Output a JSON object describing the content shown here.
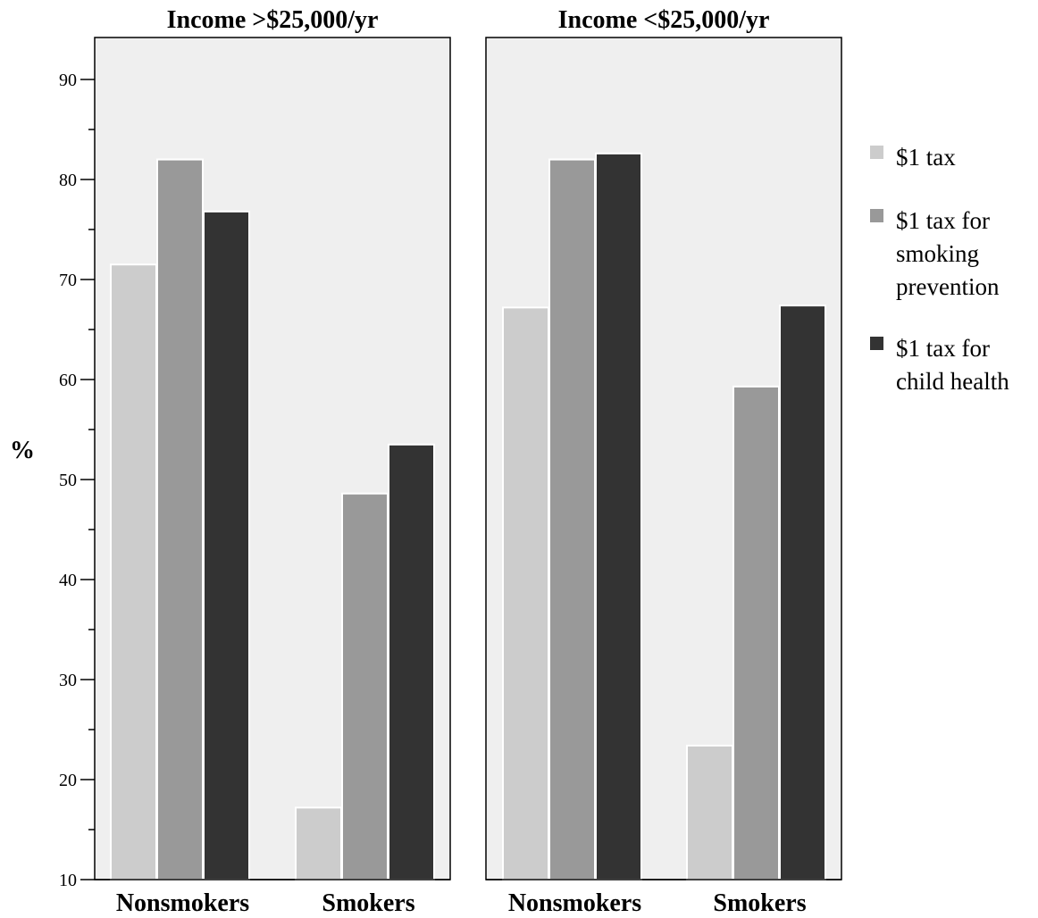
{
  "chart_data": {
    "type": "bar",
    "ylabel": "%",
    "ylim": [
      10,
      95
    ],
    "yticks": [
      10,
      20,
      30,
      40,
      50,
      60,
      70,
      80,
      90
    ],
    "categories": [
      "Nonsmokers",
      "Smokers"
    ],
    "legend_position": "right",
    "series_meta": [
      {
        "name": "$1 tax",
        "color": "#cccccc",
        "label_lines": [
          "$1 tax"
        ]
      },
      {
        "name": "$1 tax for smoking prevention",
        "color": "#999999",
        "label_lines": [
          "$1 tax for",
          "smoking",
          "prevention"
        ]
      },
      {
        "name": "$1 tax for child health",
        "color": "#333333",
        "label_lines": [
          "$1 tax for",
          "child health"
        ]
      }
    ],
    "panels": [
      {
        "title": "Income >$25,000/yr",
        "series": [
          {
            "name": "$1 tax",
            "values": [
              71.5,
              17.2
            ]
          },
          {
            "name": "$1 tax for smoking prevention",
            "values": [
              82.0,
              48.6
            ]
          },
          {
            "name": "$1 tax for child health",
            "values": [
              76.8,
              53.5
            ]
          }
        ]
      },
      {
        "title": "Income <$25,000/yr",
        "series": [
          {
            "name": "$1 tax",
            "values": [
              67.2,
              23.4
            ]
          },
          {
            "name": "$1 tax for smoking prevention",
            "values": [
              82.0,
              59.3
            ]
          },
          {
            "name": "$1 tax for child health",
            "values": [
              82.6,
              67.4
            ]
          }
        ]
      }
    ]
  }
}
